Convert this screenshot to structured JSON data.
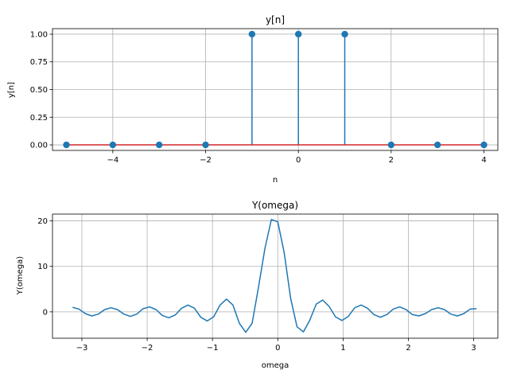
{
  "chart_data": [
    {
      "type": "stem",
      "title": "y[n]",
      "xlabel": "n",
      "ylabel": "y[n]",
      "grid": true,
      "xlim": [
        -5.3,
        4.3
      ],
      "ylim": [
        -0.05,
        1.05
      ],
      "xticks": [
        -4,
        -2,
        0,
        2,
        4
      ],
      "xtick_labels": [
        "−4",
        "−2",
        "0",
        "2",
        "4"
      ],
      "yticks": [
        0.0,
        0.25,
        0.5,
        0.75,
        1.0
      ],
      "ytick_labels": [
        "0.00",
        "0.25",
        "0.50",
        "0.75",
        "1.00"
      ],
      "x": [
        -5,
        -4,
        -3,
        -2,
        -1,
        0,
        1,
        2,
        3,
        4
      ],
      "y": [
        0,
        0,
        0,
        0,
        1,
        1,
        1,
        0,
        0,
        0
      ],
      "colors": {
        "stem": "#1f77b4",
        "marker": "#1f77b4",
        "baseline": "#d62728"
      }
    },
    {
      "type": "line",
      "title": "Y(omega)",
      "xlabel": "omega",
      "ylabel": "Y(omega)",
      "grid": true,
      "xlim": [
        -3.45,
        3.37
      ],
      "ylim": [
        -5.8,
        21.5
      ],
      "xticks": [
        -3,
        -2,
        -1,
        0,
        1,
        2,
        3
      ],
      "xtick_labels": [
        "−3",
        "−2",
        "−1",
        "0",
        "1",
        "2",
        "3"
      ],
      "yticks": [
        0,
        10,
        20
      ],
      "ytick_labels": [
        "0",
        "10",
        "20"
      ],
      "x": [
        -3.14159,
        -3.04342,
        -2.94524,
        -2.84707,
        -2.74889,
        -2.65072,
        -2.55254,
        -2.45437,
        -2.35619,
        -2.25802,
        -2.15984,
        -2.06167,
        -1.9635,
        -1.86532,
        -1.76715,
        -1.66897,
        -1.5708,
        -1.47262,
        -1.37445,
        -1.27627,
        -1.1781,
        -1.07992,
        -0.98175,
        -0.88357,
        -0.7854,
        -0.68722,
        -0.58905,
        -0.49087,
        -0.3927,
        -0.29452,
        -0.19635,
        -0.09817,
        0.0,
        0.09817,
        0.19635,
        0.29452,
        0.3927,
        0.49087,
        0.58905,
        0.68722,
        0.7854,
        0.88357,
        0.98175,
        1.07992,
        1.1781,
        1.27627,
        1.37445,
        1.47262,
        1.5708,
        1.66897,
        1.76715,
        1.86532,
        1.9635,
        2.06167,
        2.15984,
        2.25802,
        2.35619,
        2.45437,
        2.55254,
        2.65072,
        2.74889,
        2.84707,
        2.94524,
        3.04342
      ],
      "y": [
        1.0,
        0.6,
        -0.4,
        -0.9,
        -0.5,
        0.5,
        0.9,
        0.5,
        -0.5,
        -1.0,
        -0.5,
        0.7,
        1.1,
        0.5,
        -0.8,
        -1.3,
        -0.7,
        0.8,
        1.5,
        0.8,
        -1.2,
        -2.0,
        -1.1,
        1.5,
        2.8,
        1.5,
        -2.5,
        -4.5,
        -2.5,
        5.5,
        14.0,
        20.3,
        19.8,
        13.0,
        3.0,
        -3.3,
        -4.4,
        -1.8,
        1.7,
        2.6,
        1.2,
        -1.1,
        -1.9,
        -1.0,
        0.9,
        1.5,
        0.8,
        -0.6,
        -1.2,
        -0.6,
        0.6,
        1.1,
        0.5,
        -0.6,
        -0.9,
        -0.4,
        0.5,
        0.9,
        0.5,
        -0.5,
        -0.9,
        -0.4,
        0.6,
        0.7
      ],
      "colors": {
        "line": "#1f77b4"
      }
    }
  ]
}
